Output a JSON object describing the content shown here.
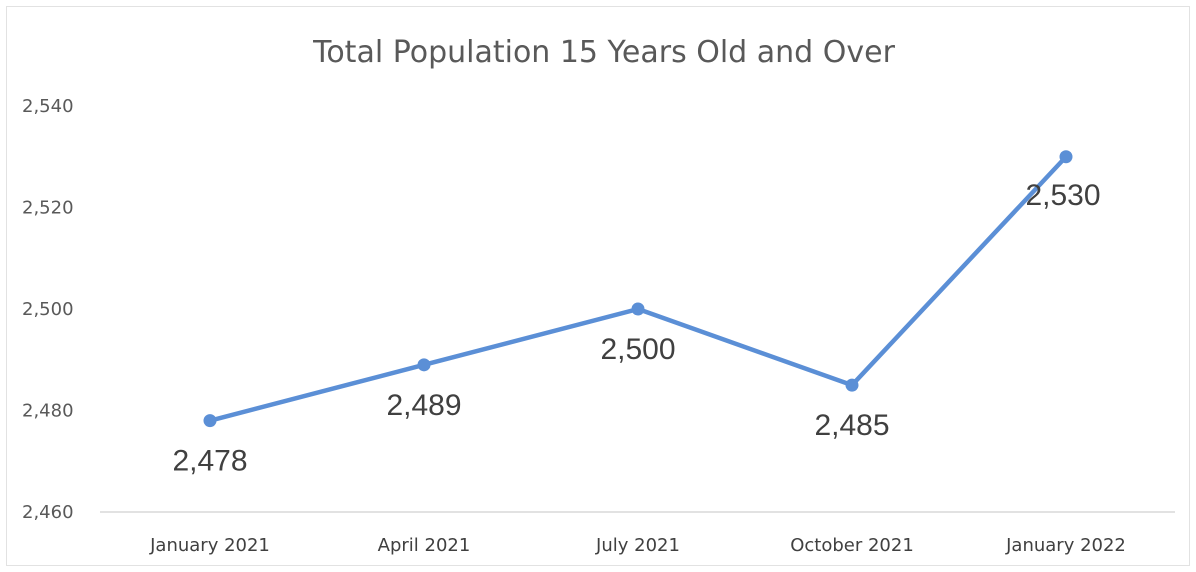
{
  "chart_data": {
    "type": "line",
    "title": "Total Population 15 Years Old and Over",
    "xlabel": "",
    "ylabel": "",
    "categories": [
      "January 2021",
      "April 2021",
      "July 2021",
      "October 2021",
      "January 2022"
    ],
    "series": [
      {
        "values": [
          2478,
          2489,
          2500,
          2485,
          2530
        ]
      }
    ],
    "data_labels": [
      "2,478",
      "2,489",
      "2,500",
      "2,485",
      "2,530"
    ],
    "ylim": [
      2460,
      2540
    ],
    "yticks": [
      {
        "value": 2460,
        "label": "2,460"
      },
      {
        "value": 2480,
        "label": "2,480"
      },
      {
        "value": 2500,
        "label": "2,500"
      },
      {
        "value": 2520,
        "label": "2,520"
      },
      {
        "value": 2540,
        "label": "2,540"
      }
    ],
    "grid": false,
    "legend": "none",
    "line_color": "#5b8fd6"
  }
}
